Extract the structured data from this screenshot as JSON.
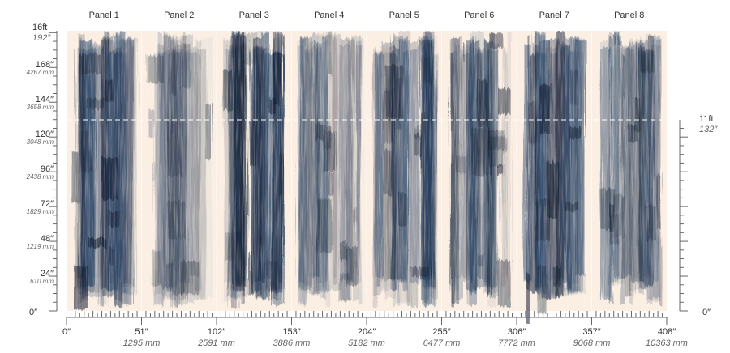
{
  "panels": [
    "Panel 1",
    "Panel 2",
    "Panel 3",
    "Panel 4",
    "Panel 5",
    "Panel 6",
    "Panel 7",
    "Panel 8"
  ],
  "left_ruler": {
    "top_ft": "16ft",
    "top_in": "192″",
    "marks": [
      {
        "in": "168″",
        "mm": "4267 mm"
      },
      {
        "in": "144″",
        "mm": "3658 mm"
      },
      {
        "in": "120″",
        "mm": "3048 mm"
      },
      {
        "in": "96″",
        "mm": "2438 mm"
      },
      {
        "in": "72″",
        "mm": "1829 mm"
      },
      {
        "in": "48″",
        "mm": "1219 mm"
      },
      {
        "in": "24″",
        "mm": "610 mm"
      }
    ],
    "zero": "0″"
  },
  "right_ruler": {
    "ft": "11ft",
    "in": "132″",
    "zero": "0″"
  },
  "bottom_ruler": [
    {
      "in": "0″"
    },
    {
      "in": "51″",
      "mm": "1295 mm"
    },
    {
      "in": "102″",
      "mm": "2591 mm"
    },
    {
      "in": "153″",
      "mm": "3886 mm"
    },
    {
      "in": "204″",
      "mm": "5182 mm"
    },
    {
      "in": "255″",
      "mm": "6477 mm"
    },
    {
      "in": "306″",
      "mm": "7772 mm"
    },
    {
      "in": "357″",
      "mm": "9068 mm"
    },
    {
      "in": "408″",
      "mm": "10363 mm"
    }
  ]
}
